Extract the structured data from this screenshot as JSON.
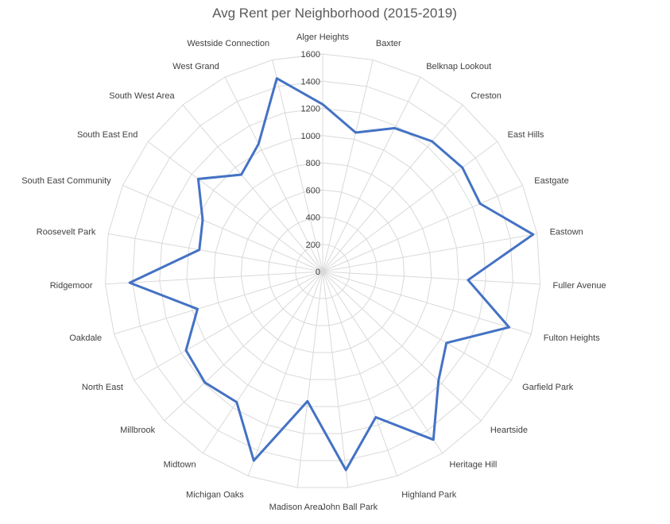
{
  "chart_data": {
    "type": "radar",
    "title": "Avg Rent per  Neighborhood (2015-2019)",
    "categories": [
      "Alger Heights",
      "Baxter",
      "Belknap Lookout",
      "Creston",
      "East Hills",
      "Eastgate",
      "Eastown",
      "Fuller Avenue",
      "Fulton Heights",
      "Garfield Park",
      "Heartside",
      "Heritage Hill",
      "Highland Park",
      "John Ball Park",
      "Madison Area",
      "Michigan Oaks",
      "Midtown",
      "Millbrook",
      "North East",
      "Oakdale",
      "Ridgemoor",
      "Roosevelt Park",
      "South East Community",
      "South East End",
      "South West Area",
      "West Grand",
      "Westside Connection"
    ],
    "series": [
      {
        "values": [
          1230,
          1050,
          1180,
          1250,
          1280,
          1260,
          1570,
          1070,
          1430,
          1050,
          1170,
          1480,
          1140,
          1470,
          960,
          1480,
          1150,
          1190,
          1160,
          960,
          1420,
          920,
          960,
          1140,
          930,
          1050,
          1460
        ]
      }
    ],
    "rlim": [
      0,
      1600
    ],
    "ticks": [
      "0",
      "200",
      "400",
      "600",
      "800",
      "1000",
      "1200",
      "1400",
      "1600"
    ],
    "series_color": "#4472C4",
    "grid_color": "#D9D9D9",
    "grid": true,
    "legend": "none"
  }
}
